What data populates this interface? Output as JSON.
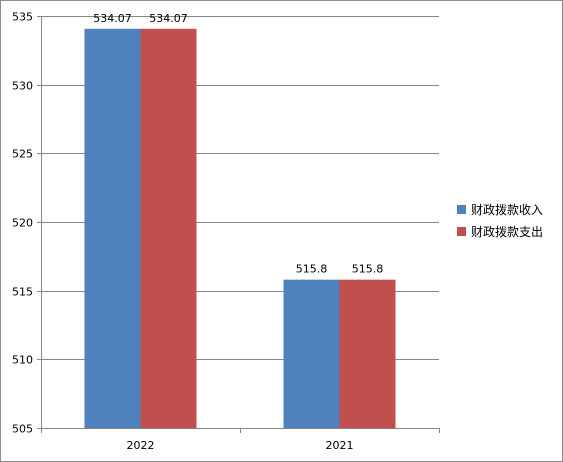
{
  "chart_data": {
    "type": "bar",
    "title": "",
    "xlabel": "",
    "ylabel": "",
    "categories": [
      "2022",
      "2021"
    ],
    "series": [
      {
        "name": "财政拨款收入",
        "values": [
          534.07,
          515.8
        ],
        "labels": [
          "534.07",
          "515.8"
        ],
        "color": "#4f81bd"
      },
      {
        "name": "财政拨款支出",
        "values": [
          534.07,
          515.8
        ],
        "labels": [
          "534.07",
          "515.8"
        ],
        "color": "#c0504d"
      }
    ],
    "ylim": [
      505,
      535
    ],
    "yticks": [
      505,
      510,
      515,
      520,
      525,
      530,
      535
    ],
    "grid": true,
    "legend_position": "right"
  }
}
